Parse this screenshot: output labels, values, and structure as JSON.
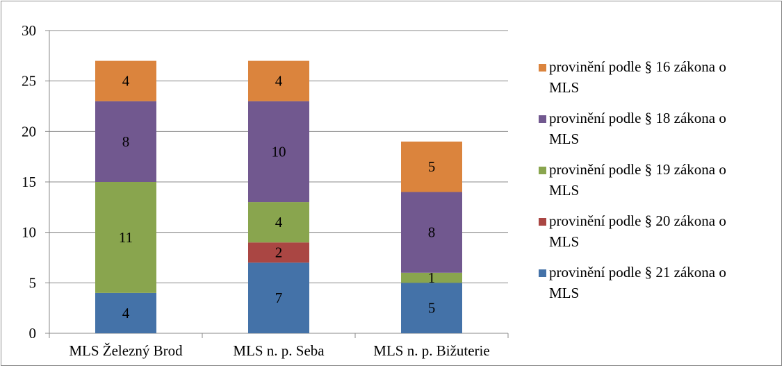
{
  "chart_data": {
    "type": "bar",
    "stacked": true,
    "categories": [
      "MLS Železný Brod",
      "MLS n. p. Seba",
      "MLS n. p. Bižuterie"
    ],
    "series": [
      {
        "name": "provinění podle § 21 zákona o MLS",
        "color": "#4472a8",
        "values": [
          4,
          7,
          5
        ]
      },
      {
        "name": "provinění podle § 20 zákona o MLS",
        "color": "#aa4643",
        "values": [
          0,
          2,
          0
        ]
      },
      {
        "name": "provinění podle § 19 zákona o MLS",
        "color": "#89a54e",
        "values": [
          11,
          4,
          1
        ]
      },
      {
        "name": "provinění podle § 18 zákona o MLS",
        "color": "#71588f",
        "values": [
          8,
          10,
          8
        ]
      },
      {
        "name": "provinění podle § 16 zákona o MLS",
        "color": "#db843d",
        "values": [
          4,
          4,
          5
        ]
      }
    ],
    "ylim": [
      0,
      30
    ],
    "yticks": [
      0,
      5,
      10,
      15,
      20,
      25,
      30
    ],
    "grid": true,
    "legend": "right"
  }
}
